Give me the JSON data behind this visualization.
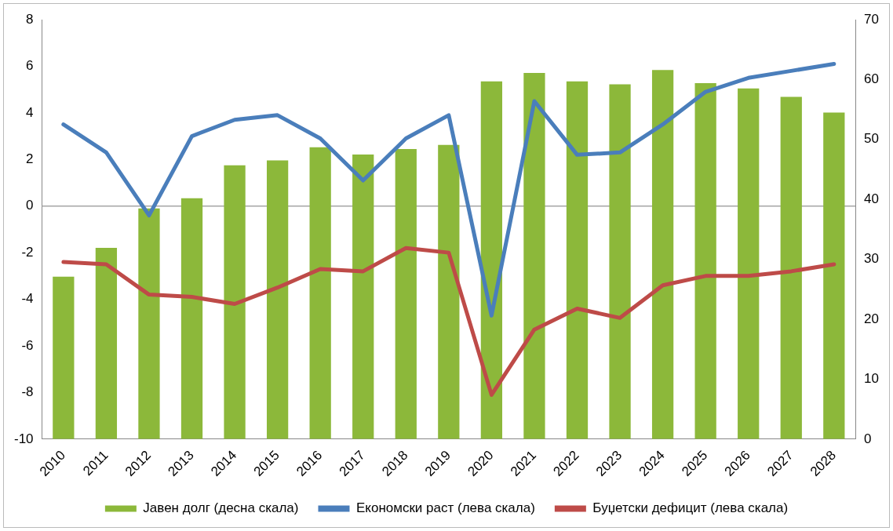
{
  "chart_data": {
    "type": "bar",
    "categories": [
      "2010",
      "2011",
      "2012",
      "2013",
      "2014",
      "2015",
      "2016",
      "2017",
      "2018",
      "2019",
      "2020",
      "2021",
      "2022",
      "2023",
      "2024",
      "2025",
      "2026",
      "2027",
      "2028"
    ],
    "series": [
      {
        "name": "Јавен долг (десна скала)",
        "axis": "y2",
        "color": "#8cb83a",
        "values": [
          27.1,
          31.9,
          38.5,
          40.2,
          45.7,
          46.5,
          48.7,
          47.5,
          48.4,
          49.1,
          59.7,
          61.1,
          59.7,
          59.2,
          61.6,
          59.4,
          58.5,
          57.1,
          54.5
        ]
      },
      {
        "name": "Економски раст (лева скала)",
        "type": "line",
        "axis": "y",
        "color": "#4a7ebb",
        "values": [
          3.5,
          2.3,
          -0.4,
          3.0,
          3.7,
          3.9,
          2.9,
          1.1,
          2.9,
          3.9,
          -4.7,
          4.5,
          2.2,
          2.3,
          3.5,
          4.9,
          5.5,
          5.8,
          6.1
        ]
      },
      {
        "name": "Буџетски дефицит (лева скала)",
        "type": "line",
        "axis": "y",
        "color": "#be4b48",
        "values": [
          -2.4,
          -2.5,
          -3.8,
          -3.9,
          -4.2,
          -3.5,
          -2.7,
          -2.8,
          -1.8,
          -2.0,
          -8.1,
          -5.3,
          -4.4,
          -4.8,
          -3.4,
          -3.0,
          -3.0,
          -2.8,
          -2.5
        ]
      }
    ],
    "ylim": [
      -10,
      8
    ],
    "yticks": [
      -10,
      -8,
      -6,
      -4,
      -2,
      0,
      2,
      4,
      6,
      8
    ],
    "y2lim": [
      0,
      70
    ],
    "y2ticks": [
      0,
      10,
      20,
      30,
      40,
      50,
      60,
      70
    ],
    "ref_lines": [
      {
        "axis": "y",
        "value": 0,
        "color": "#a6a6a6"
      }
    ],
    "grid": false,
    "legend": "bottom",
    "marker": "none",
    "line_style": "solid"
  }
}
